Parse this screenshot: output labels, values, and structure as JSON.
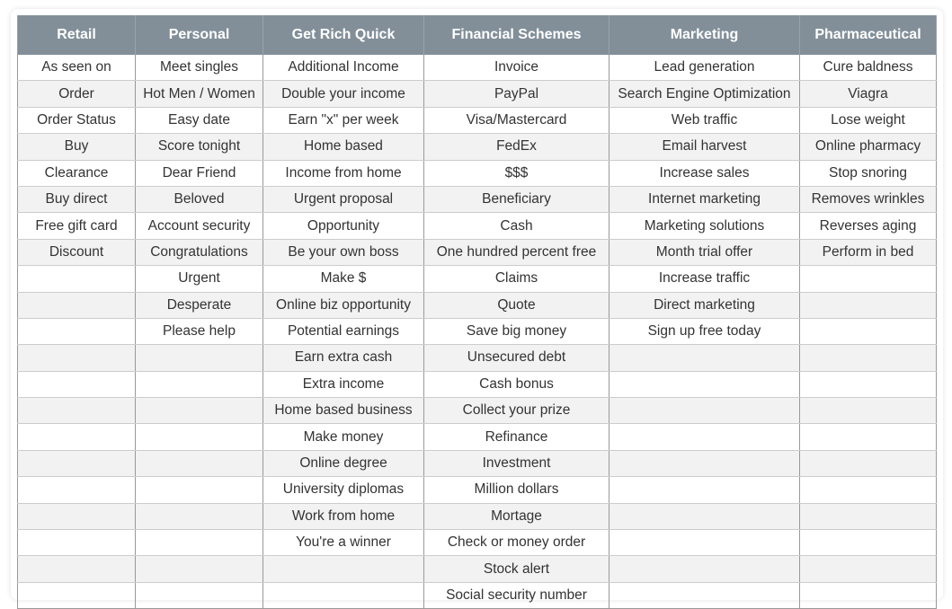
{
  "table": {
    "columns": [
      {
        "header": "Retail",
        "items": [
          "As seen on",
          "Order",
          "Order Status",
          "Buy",
          "Clearance",
          "Buy direct",
          "Free gift card",
          "Discount"
        ]
      },
      {
        "header": "Personal",
        "items": [
          "Meet singles",
          "Hot Men / Women",
          "Easy date",
          "Score tonight",
          "Dear Friend",
          "Beloved",
          "Account security",
          "Congratulations",
          "Urgent",
          "Desperate",
          "Please help"
        ]
      },
      {
        "header": "Get Rich Quick",
        "items": [
          "Additional Income",
          "Double your income",
          "Earn \"x\" per week",
          "Home based",
          "Income from home",
          "Urgent proposal",
          "Opportunity",
          "Be your own boss",
          "Make $",
          "Online biz opportunity",
          "Potential earnings",
          "Earn extra cash",
          "Extra income",
          "Home based business",
          "Make money",
          "Online degree",
          "University diplomas",
          "Work from home",
          "You're a winner"
        ]
      },
      {
        "header": "Financial Schemes",
        "items": [
          "Invoice",
          "PayPal",
          "Visa/Mastercard",
          "FedEx",
          "$$$",
          "Beneficiary",
          "Cash",
          "One hundred percent free",
          "Claims",
          "Quote",
          "Save big money",
          "Unsecured debt",
          "Cash bonus",
          "Collect your prize",
          "Refinance",
          "Investment",
          "Million dollars",
          "Mortage",
          "Check or money order",
          "Stock alert",
          "Social security number"
        ]
      },
      {
        "header": "Marketing",
        "items": [
          "Lead generation",
          "Search Engine Optimization",
          "Web traffic",
          "Email harvest",
          "Increase sales",
          "Internet marketing",
          "Marketing solutions",
          "Month trial offer",
          "Increase traffic",
          "Direct marketing",
          "Sign up free today"
        ]
      },
      {
        "header": "Pharmaceutical",
        "items": [
          "Cure baldness",
          "Viagra",
          "Lose weight",
          "Online pharmacy",
          "Stop snoring",
          "Removes wrinkles",
          "Reverses aging",
          "Perform in bed"
        ]
      }
    ]
  },
  "colors": {
    "header_bg": "#828f99",
    "stripe": "#f2f2f2"
  }
}
